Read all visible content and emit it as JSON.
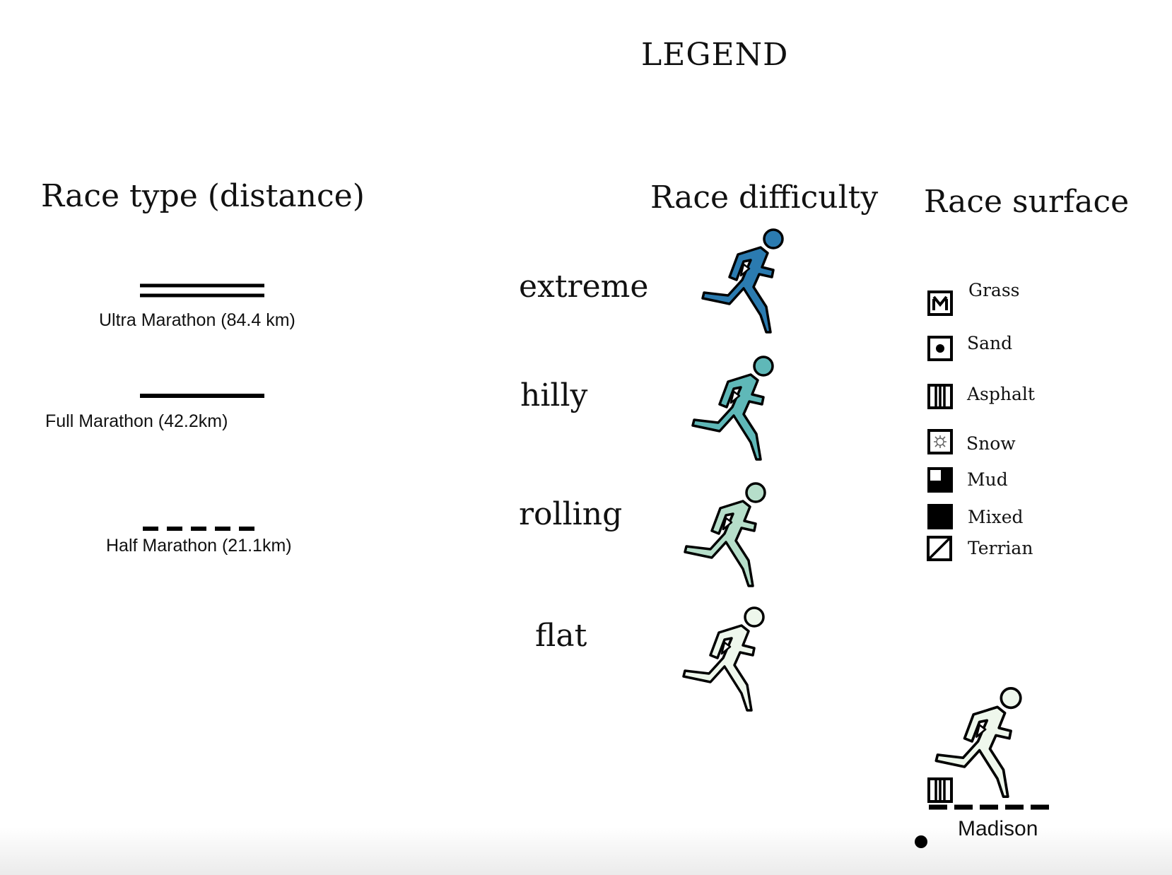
{
  "legend_title": "LEGEND",
  "race_type": {
    "title": "Race type (distance)",
    "items": [
      {
        "label": "Ultra Marathon (84.4 km)",
        "line_style": "double"
      },
      {
        "label": "Full Marathon (42.2km)",
        "line_style": "solid"
      },
      {
        "label": "Half Marathon (21.1km)",
        "line_style": "dashed"
      }
    ]
  },
  "race_difficulty": {
    "title": "Race difficulty",
    "items": [
      {
        "label": "extreme",
        "color": "#2b7bb0"
      },
      {
        "label": "hilly",
        "color": "#5fb8b8"
      },
      {
        "label": "rolling",
        "color": "#b6deca"
      },
      {
        "label": "flat",
        "color": "#eef7ec"
      }
    ]
  },
  "race_surface": {
    "title": "Race surface",
    "items": [
      {
        "label": "Grass",
        "icon": "grass-icon"
      },
      {
        "label": "Sand",
        "icon": "sand-icon"
      },
      {
        "label": "Asphalt",
        "icon": "asphalt-icon"
      },
      {
        "label": "Snow",
        "icon": "snow-icon"
      },
      {
        "label": "Mud",
        "icon": "mud-icon"
      },
      {
        "label": "Mixed",
        "icon": "mixed-icon"
      },
      {
        "label": "Terrian",
        "icon": "terrain-icon"
      }
    ]
  },
  "example": {
    "label": "Madison",
    "difficulty_color": "#eef7ec",
    "surface_icon": "asphalt-icon",
    "line_style": "dashed"
  }
}
